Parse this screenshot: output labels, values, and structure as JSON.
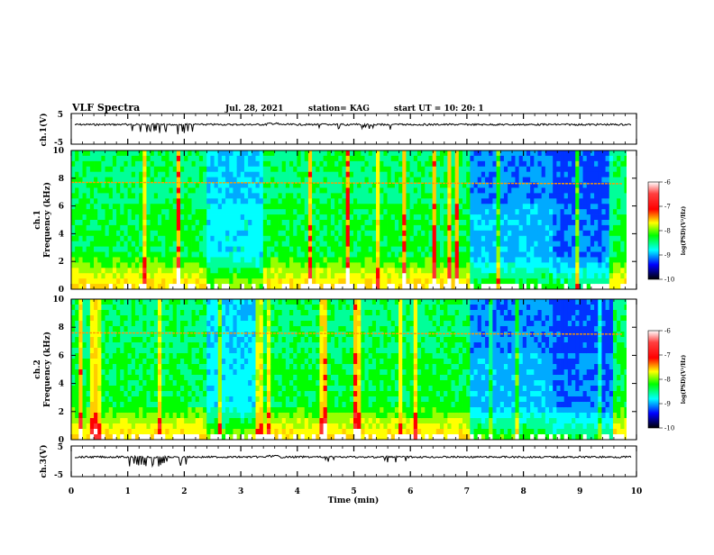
{
  "header": {
    "title": "VLF Spectra",
    "date": "Jul. 28, 2021",
    "station": "station= KAG",
    "start_ut": "start UT = 10: 20: 1"
  },
  "colors": {
    "spectrogram_scale": [
      "#ffffff",
      "#ff0000",
      "#ffff00",
      "#00ff00",
      "#00ffff",
      "#0000ff",
      "#000000"
    ],
    "trace": "#000000"
  },
  "chart_data": [
    {
      "type": "line",
      "id": "ch1-waveform",
      "ylabel": "ch.1(V)",
      "yticks": [
        "5",
        "-5"
      ],
      "ylim": [
        -5,
        5
      ],
      "xlim": [
        0,
        10
      ],
      "x_unit": "min",
      "description_values": "baseline near 0 V with short negative spikes between 0.9 and 2.1 min"
    },
    {
      "type": "heatmap",
      "id": "ch1-spectrogram",
      "ylabel_line1": "ch.1",
      "ylabel_line2": "Frequency (kHz)",
      "yticks": [
        "0",
        "2",
        "4",
        "6",
        "8",
        "10"
      ],
      "ylim": [
        0,
        10
      ],
      "xlim": [
        0,
        10
      ],
      "colorbar": {
        "label": "log(PSD)(V²/Hz)",
        "ticks": [
          "-6",
          "-7",
          "-8",
          "-9",
          "-10"
        ],
        "range": [
          -10,
          -6
        ]
      },
      "narrowband_line_khz": 7.7
    },
    {
      "type": "heatmap",
      "id": "ch2-spectrogram",
      "ylabel_line1": "ch.2",
      "ylabel_line2": "Frequency (kHz)",
      "yticks": [
        "0",
        "2",
        "4",
        "6",
        "8",
        "10"
      ],
      "ylim": [
        0,
        10
      ],
      "xlim": [
        0,
        10
      ],
      "colorbar": {
        "label": "log(PSD)(V²/Hz)",
        "ticks": [
          "-6",
          "-7",
          "-8",
          "-9",
          "-10"
        ],
        "range": [
          -10,
          -6
        ]
      },
      "narrowband_line_khz": 7.6
    },
    {
      "type": "line",
      "id": "ch3-waveform",
      "ylabel": "ch.3(V)",
      "yticks": [
        "5",
        "-5"
      ],
      "ylim": [
        -5,
        5
      ],
      "xlim": [
        0,
        10
      ],
      "x_unit": "min"
    }
  ],
  "xaxis": {
    "label": "Time (min)",
    "ticks": [
      "0",
      "1",
      "2",
      "3",
      "4",
      "5",
      "6",
      "7",
      "8",
      "9",
      "10"
    ]
  }
}
